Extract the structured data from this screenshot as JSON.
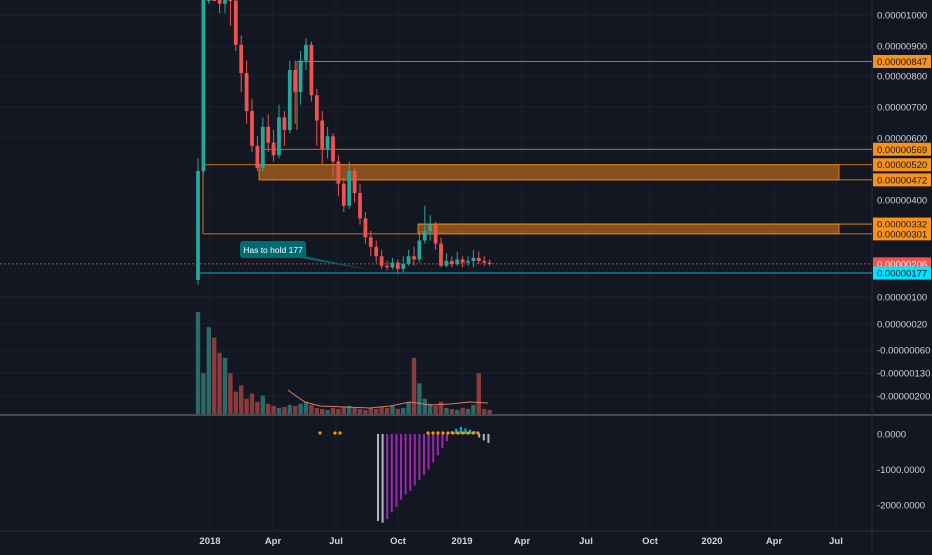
{
  "chart_data": {
    "type": "candlestick",
    "price_axis": {
      "ticks": [
        "0.00001000",
        "0.00000900",
        "0.00000800",
        "0.00000700",
        "0.00000600",
        "0.00000400",
        "0.00000100",
        "0.00000020",
        "-0.00000060",
        "-0.00000130",
        "-0.00000200"
      ]
    },
    "osc_axis": {
      "ticks": [
        "0.0000",
        "-1000.0000",
        "-2000.0000"
      ],
      "values": [
        0,
        -1000,
        -2000
      ],
      "range": [
        -2600,
        600
      ]
    },
    "time_axis": {
      "labels": [
        "2018",
        "Apr",
        "Jul",
        "Oct",
        "2019",
        "Apr",
        "Jul",
        "Oct",
        "2020",
        "Apr",
        "Jul"
      ]
    },
    "price_levels": [
      {
        "label": "0.00000847",
        "value": 8.47e-06,
        "color": "#f7931a"
      },
      {
        "label": "0.00000569",
        "value": 5.69e-06,
        "color": "#f7931a"
      },
      {
        "label": "0.00000520",
        "value": 5.2e-06,
        "color": "#f7931a"
      },
      {
        "label": "0.00000472",
        "value": 4.72e-06,
        "color": "#f7931a"
      },
      {
        "label": "0.00000332",
        "value": 3.32e-06,
        "color": "#f7931a"
      },
      {
        "label": "0.00000301",
        "value": 3.01e-06,
        "color": "#f7931a"
      },
      {
        "label": "0.00000206",
        "value": 2.06e-06,
        "color": "#ef5350"
      },
      {
        "label": "0.00000177",
        "value": 1.77e-06,
        "color": "#00e5ff"
      }
    ],
    "zones": [
      {
        "from": 4.72e-06,
        "to": 5.2e-06
      },
      {
        "from": 3.01e-06,
        "to": 3.32e-06
      }
    ],
    "annotation": {
      "text": "Has to hold 177"
    },
    "candles": [
      [
        1.55e-06,
        5e-06,
        1.4e-06,
        5.4e-06
      ],
      [
        5e-06,
        1.1e-05,
        4.9e-06,
        1.15e-05
      ],
      [
        1.1e-05,
        1.12e-05,
        1.03e-05,
        1.18e-05
      ],
      [
        1.12e-05,
        1.08e-05,
        1.05e-05,
        1.16e-05
      ],
      [
        1.08e-05,
        1.03e-05,
        1e-05,
        1.1e-05
      ],
      [
        1.03e-05,
        1.09e-05,
        1e-05,
        1.12e-05
      ],
      [
        1.09e-05,
        1.04e-05,
        9.6e-06,
        1.11e-05
      ],
      [
        1.04e-05,
        9e-06,
        8.8e-06,
        1.06e-05
      ],
      [
        9e-06,
        8.1e-06,
        7.5e-06,
        9.3e-06
      ],
      [
        8.1e-06,
        6.9e-06,
        6.5e-06,
        8.5e-06
      ],
      [
        6.9e-06,
        5.8e-06,
        5.6e-06,
        7.3e-06
      ],
      [
        5.8e-06,
        5.1e-06,
        5e-06,
        6.1e-06
      ],
      [
        5.1e-06,
        6.4e-06,
        5e-06,
        6.7e-06
      ],
      [
        6.4e-06,
        5.9e-06,
        5.6e-06,
        6.8e-06
      ],
      [
        5.9e-06,
        5.5e-06,
        5.3e-06,
        6.3e-06
      ],
      [
        5.5e-06,
        6.7e-06,
        5.4e-06,
        7.1e-06
      ],
      [
        6.7e-06,
        6.3e-06,
        5.8e-06,
        6.9e-06
      ],
      [
        6.3e-06,
        8.2e-06,
        6.2e-06,
        8.5e-06
      ],
      [
        8.2e-06,
        7.5e-06,
        6.5e-06,
        8.5e-06
      ],
      [
        7.5e-06,
        8.5e-06,
        7.1e-06,
        8.8e-06
      ],
      [
        8.5e-06,
        9e-06,
        8.2e-06,
        9.2e-06
      ],
      [
        9e-06,
        7.4e-06,
        7.2e-06,
        9.1e-06
      ],
      [
        7.4e-06,
        6.6e-06,
        5.8e-06,
        7.6e-06
      ],
      [
        6.6e-06,
        5.7e-06,
        5.2e-06,
        6.9e-06
      ],
      [
        5.7e-06,
        6.1e-06,
        5.4e-06,
        6.4e-06
      ],
      [
        6.1e-06,
        5.3e-06,
        4.8e-06,
        6.2e-06
      ],
      [
        5.3e-06,
        4.6e-06,
        4.2e-06,
        5.5e-06
      ],
      [
        4.6e-06,
        3.9e-06,
        3.7e-06,
        4.8e-06
      ],
      [
        3.9e-06,
        5e-06,
        3.8e-06,
        5.3e-06
      ],
      [
        5e-06,
        4.3e-06,
        4e-06,
        5.1e-06
      ],
      [
        4.3e-06,
        3.5e-06,
        3.3e-06,
        4.6e-06
      ],
      [
        3.5e-06,
        2.9e-06,
        2.7e-06,
        3.7e-06
      ],
      [
        2.9e-06,
        2.6e-06,
        2.3e-06,
        3.1e-06
      ],
      [
        2.6e-06,
        2.3e-06,
        2.1e-06,
        2.8e-06
      ],
      [
        2.3e-06,
        2e-06,
        1.9e-06,
        2.5e-06
      ],
      [
        2e-06,
        1.95e-06,
        1.85e-06,
        2.15e-06
      ],
      [
        1.95e-06,
        2.1e-06,
        1.88e-06,
        2.25e-06
      ],
      [
        2.1e-06,
        1.9e-06,
        1.75e-06,
        2.2e-06
      ],
      [
        1.9e-06,
        2.05e-06,
        1.8e-06,
        2.3e-06
      ],
      [
        2.05e-06,
        2.3e-06,
        2e-06,
        2.5e-06
      ],
      [
        2.3e-06,
        2.2e-06,
        2e-06,
        2.6e-06
      ],
      [
        2.2e-06,
        2.8e-06,
        2.1e-06,
        3.1e-06
      ],
      [
        2.8e-06,
        3.1e-06,
        2.7e-06,
        3.9e-06
      ],
      [
        3.1e-06,
        3.3e-06,
        2.8e-06,
        3.6e-06
      ],
      [
        3.3e-06,
        2.7e-06,
        2.5e-06,
        3.4e-06
      ],
      [
        2.7e-06,
        2e-06,
        1.95e-06,
        2.9e-06
      ],
      [
        2e-06,
        2.15e-06,
        1.95e-06,
        2.4e-06
      ],
      [
        2.15e-06,
        2.05e-06,
        1.95e-06,
        2.3e-06
      ],
      [
        2.05e-06,
        2.2e-06,
        2e-06,
        2.45e-06
      ],
      [
        2.2e-06,
        2.1e-06,
        1.95e-06,
        2.3e-06
      ],
      [
        2.1e-06,
        2.15e-06,
        2e-06,
        2.3e-06
      ],
      [
        2.15e-06,
        2.25e-06,
        1.95e-06,
        2.5e-06
      ],
      [
        2.25e-06,
        2.15e-06,
        2.05e-06,
        2.45e-06
      ],
      [
        2.15e-06,
        2.1e-06,
        2e-06,
        2.3e-06
      ],
      [
        2.1e-06,
        2.06e-06,
        2e-06,
        2.2e-06
      ]
    ],
    "volumes": [
      1.0,
      0.4,
      0.85,
      0.75,
      0.6,
      0.55,
      0.4,
      0.22,
      0.28,
      0.15,
      0.2,
      0.12,
      0.18,
      0.1,
      0.08,
      0.06,
      0.07,
      0.09,
      0.08,
      0.1,
      0.12,
      0.09,
      0.06,
      0.05,
      0.04,
      0.06,
      0.05,
      0.07,
      0.08,
      0.06,
      0.05,
      0.04,
      0.06,
      0.05,
      0.07,
      0.06,
      0.08,
      0.05,
      0.06,
      0.12,
      0.55,
      0.3,
      0.15,
      0.1,
      0.08,
      0.12,
      0.06,
      0.05,
      0.04,
      0.06,
      0.05,
      0.09,
      0.4,
      0.05,
      0.04
    ],
    "osc_histogram": [
      -2450,
      -2500,
      -2400,
      -2200,
      -2050,
      -1850,
      -1700,
      -1600,
      -1450,
      -1300,
      -1150,
      -1000,
      -800,
      -600,
      -400,
      -200,
      80,
      150,
      200,
      160,
      120,
      80,
      -100,
      -180,
      -250
    ],
    "osc_dots": [
      5,
      10,
      12
    ]
  }
}
